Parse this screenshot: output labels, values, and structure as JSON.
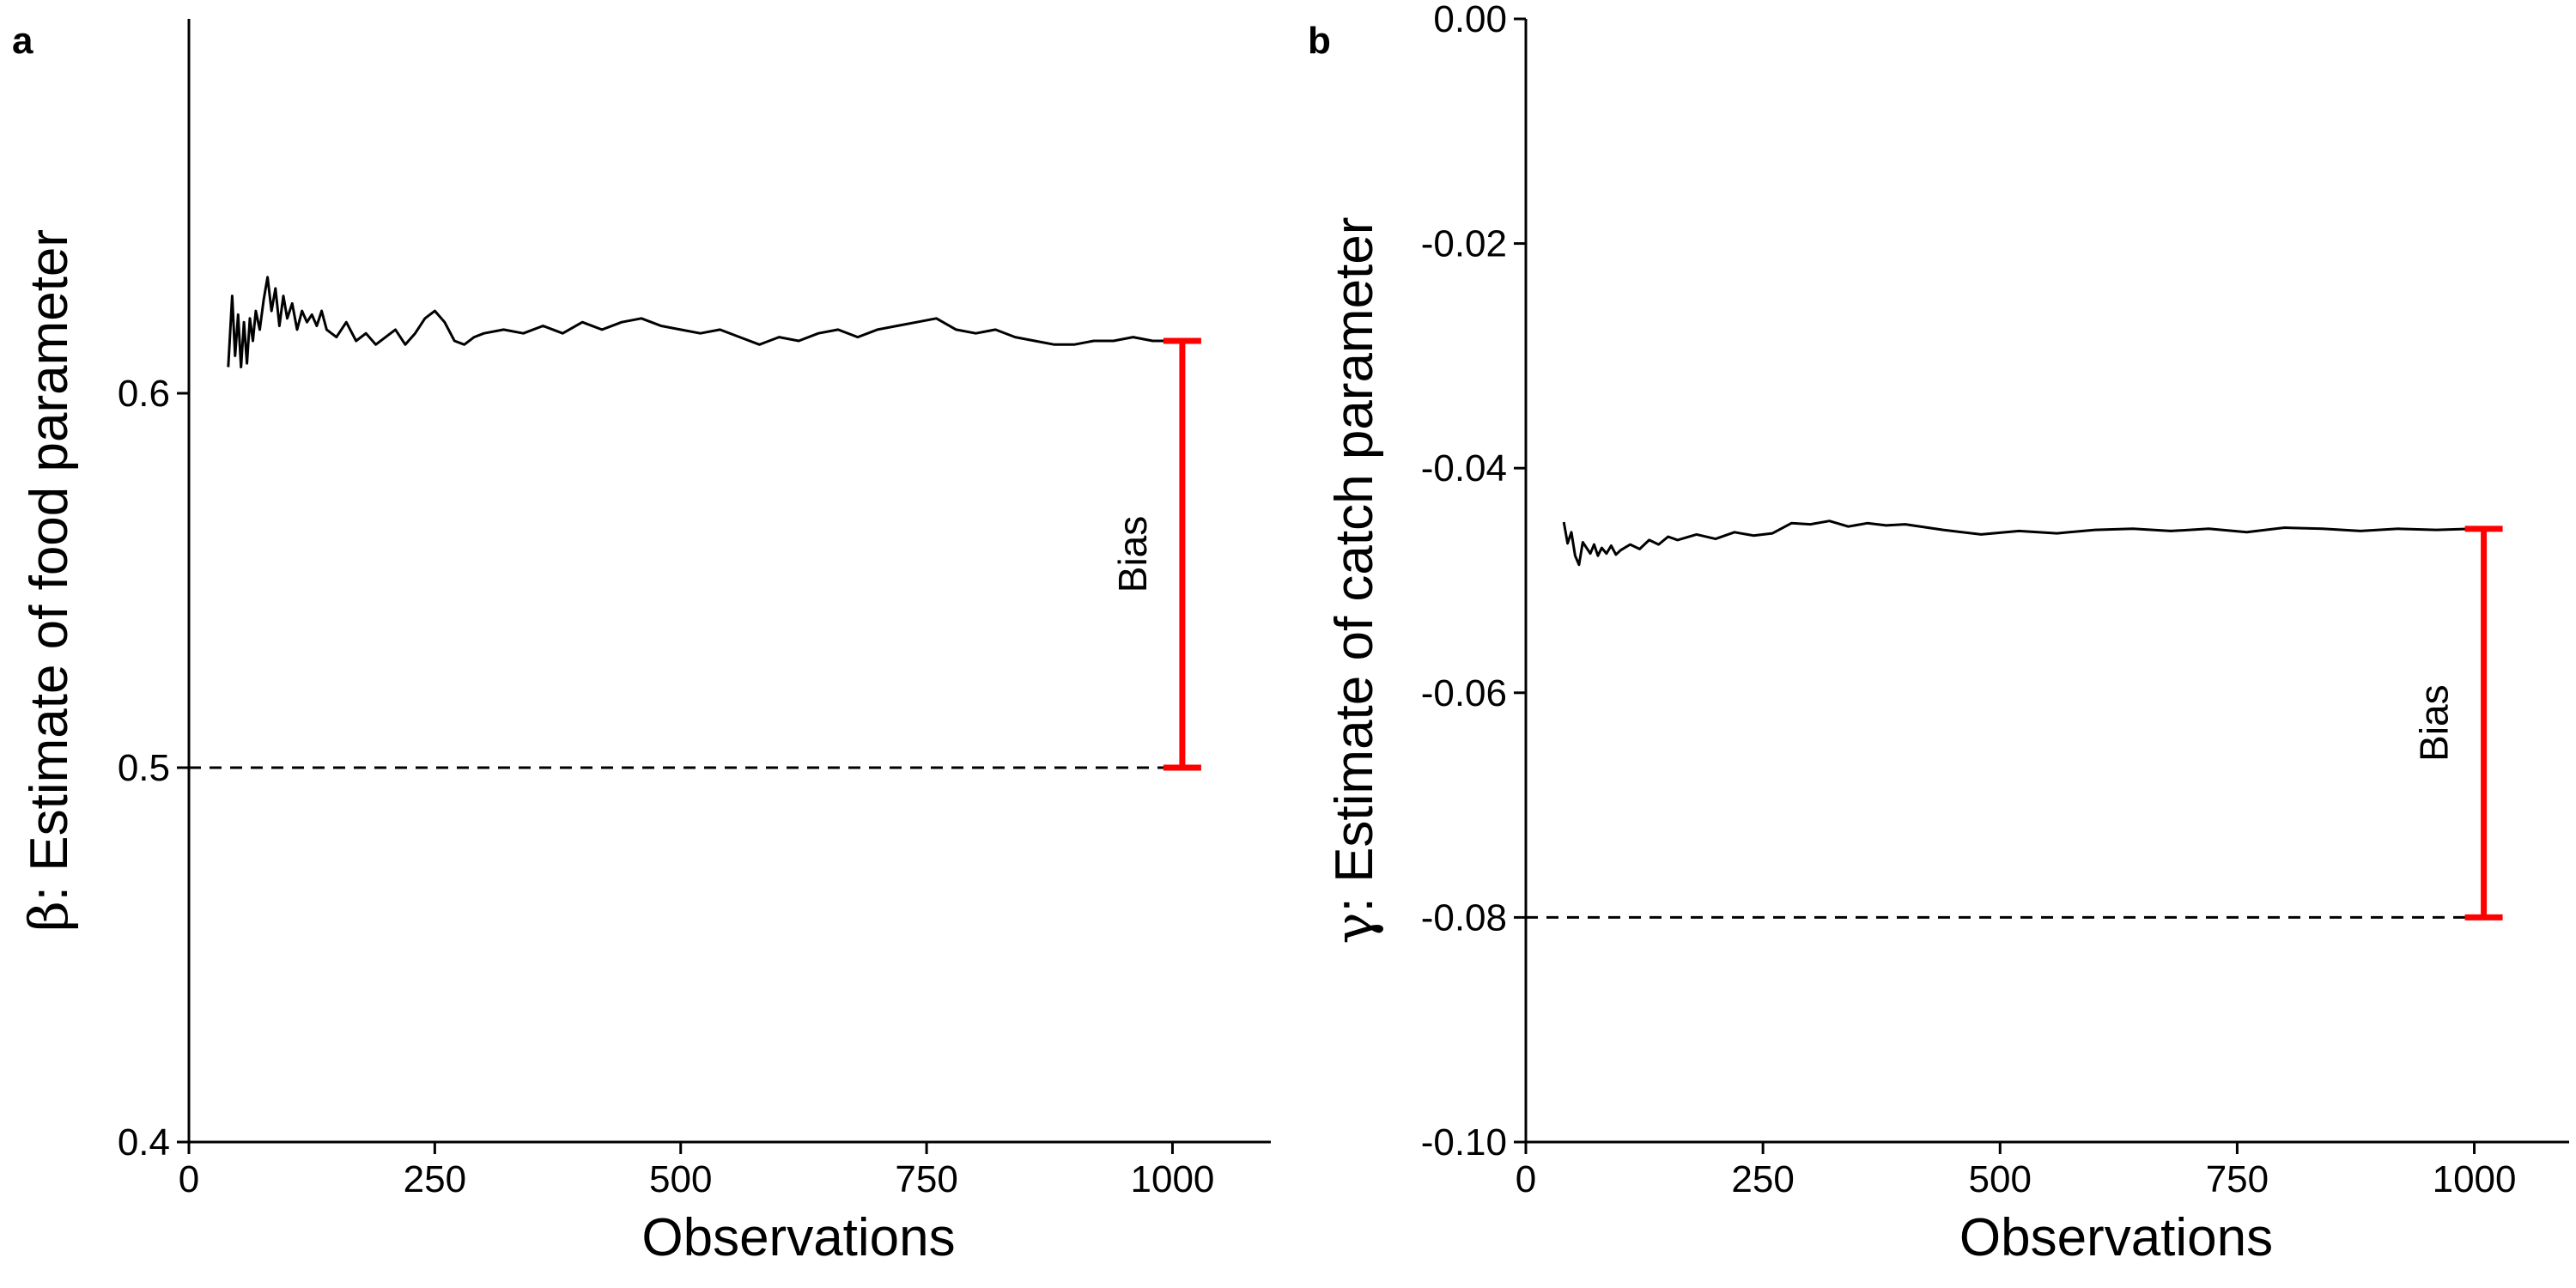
{
  "colors": {
    "line": "#000000",
    "bias": "#ff0000",
    "reference": "#000000",
    "background": "#ffffff"
  },
  "chart_data": [
    {
      "type": "line",
      "panel_label": "a",
      "xlabel": "Observations",
      "ylabel_symbol": "β",
      "ylabel_text": ": Estimate of food parameter",
      "xlim": [
        0,
        1100
      ],
      "ylim": [
        0.4,
        0.7
      ],
      "xticks": [
        0,
        250,
        500,
        750,
        1000
      ],
      "xtick_labels": [
        "0",
        "250",
        "500",
        "750",
        "1000"
      ],
      "yticks": [
        0.4,
        0.5,
        0.6
      ],
      "ytick_labels": [
        "0.4",
        "0.5",
        "0.6"
      ],
      "grid": false,
      "series": [
        {
          "x": [
            40,
            44,
            47,
            50,
            53,
            56,
            59,
            62,
            65,
            68,
            72,
            76,
            80,
            84,
            88,
            92,
            96,
            100,
            105,
            110,
            115,
            120,
            125,
            130,
            135,
            140,
            150,
            160,
            170,
            180,
            190,
            200,
            210,
            220,
            230,
            240,
            250,
            260,
            270,
            280,
            290,
            300,
            320,
            340,
            360,
            380,
            400,
            420,
            440,
            460,
            480,
            500,
            520,
            540,
            560,
            580,
            600,
            620,
            640,
            660,
            680,
            700,
            720,
            740,
            760,
            780,
            800,
            820,
            840,
            860,
            880,
            900,
            920,
            940,
            960,
            980,
            1000
          ],
          "y": [
            0.607,
            0.626,
            0.61,
            0.621,
            0.607,
            0.619,
            0.608,
            0.62,
            0.614,
            0.622,
            0.617,
            0.625,
            0.631,
            0.622,
            0.628,
            0.618,
            0.626,
            0.62,
            0.624,
            0.617,
            0.622,
            0.619,
            0.621,
            0.618,
            0.622,
            0.617,
            0.615,
            0.619,
            0.614,
            0.616,
            0.613,
            0.615,
            0.617,
            0.613,
            0.616,
            0.62,
            0.622,
            0.619,
            0.614,
            0.613,
            0.615,
            0.616,
            0.617,
            0.616,
            0.618,
            0.616,
            0.619,
            0.617,
            0.619,
            0.62,
            0.618,
            0.617,
            0.616,
            0.617,
            0.615,
            0.613,
            0.615,
            0.614,
            0.616,
            0.617,
            0.615,
            0.617,
            0.618,
            0.619,
            0.62,
            0.617,
            0.616,
            0.617,
            0.615,
            0.614,
            0.613,
            0.613,
            0.614,
            0.614,
            0.615,
            0.614,
            0.614
          ]
        }
      ],
      "reference_line": {
        "y": 0.5,
        "x_range": [
          0,
          1000
        ],
        "style": "dashed"
      },
      "bias_bar": {
        "x": 1010,
        "y_from": 0.5,
        "y_to": 0.614,
        "label": "Bias"
      }
    },
    {
      "type": "line",
      "panel_label": "b",
      "xlabel": "Observations",
      "ylabel_symbol": "γ",
      "ylabel_text": ": Estimate of catch parameter",
      "xlim": [
        0,
        1100
      ],
      "ylim": [
        -0.1,
        0.0
      ],
      "xticks": [
        0,
        250,
        500,
        750,
        1000
      ],
      "xtick_labels": [
        "0",
        "250",
        "500",
        "750",
        "1000"
      ],
      "yticks": [
        -0.1,
        -0.08,
        -0.06,
        -0.04,
        -0.02,
        0.0
      ],
      "ytick_labels": [
        "-0.10",
        "-0.08",
        "-0.06",
        "-0.04",
        "-0.02",
        "0.00"
      ],
      "grid": false,
      "series": [
        {
          "x": [
            40,
            44,
            48,
            52,
            56,
            60,
            64,
            68,
            72,
            76,
            80,
            85,
            90,
            95,
            100,
            110,
            120,
            130,
            140,
            150,
            160,
            180,
            200,
            220,
            240,
            260,
            280,
            300,
            320,
            340,
            360,
            380,
            400,
            440,
            480,
            520,
            560,
            600,
            640,
            680,
            720,
            760,
            800,
            840,
            880,
            920,
            960,
            1000
          ],
          "y": [
            -0.0448,
            -0.0467,
            -0.0457,
            -0.0478,
            -0.0486,
            -0.0466,
            -0.0471,
            -0.0476,
            -0.0468,
            -0.0478,
            -0.0471,
            -0.0476,
            -0.0469,
            -0.0477,
            -0.0473,
            -0.0468,
            -0.0472,
            -0.0464,
            -0.0468,
            -0.0461,
            -0.0464,
            -0.0459,
            -0.0463,
            -0.0457,
            -0.046,
            -0.0458,
            -0.0449,
            -0.045,
            -0.0447,
            -0.0452,
            -0.0449,
            -0.0451,
            -0.045,
            -0.0455,
            -0.0459,
            -0.0456,
            -0.0458,
            -0.0455,
            -0.0454,
            -0.0456,
            -0.0454,
            -0.0457,
            -0.0453,
            -0.0454,
            -0.0456,
            -0.0454,
            -0.0455,
            -0.0454
          ]
        }
      ],
      "reference_line": {
        "y": -0.08,
        "x_range": [
          0,
          1000
        ],
        "style": "dashed"
      },
      "bias_bar": {
        "x": 1010,
        "y_from": -0.08,
        "y_to": -0.0454,
        "label": "Bias"
      }
    }
  ]
}
